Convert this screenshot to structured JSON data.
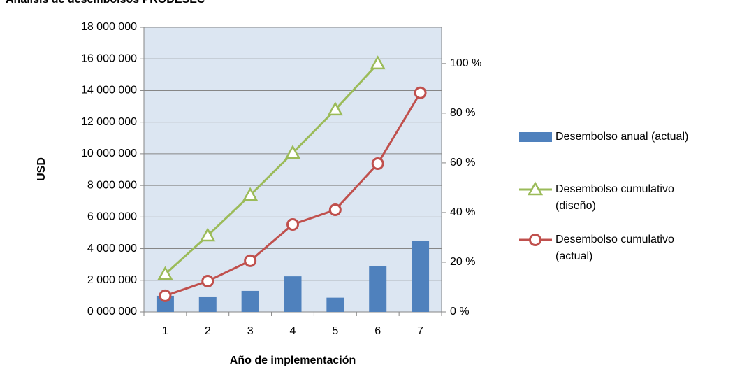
{
  "chart_data": {
    "type": "bar_line",
    "title": "Análisis de desembolsos PRODESEC",
    "x_label": "Año de implementación",
    "y_label": "USD",
    "categories": [
      "1",
      "2",
      "3",
      "4",
      "5",
      "6",
      "7"
    ],
    "series": [
      {
        "name": "Desembolso anual (actual)",
        "type": "bar",
        "color": "#4f81bd",
        "values": [
          1020000,
          930000,
          1330000,
          2250000,
          900000,
          2880000,
          4470000
        ]
      },
      {
        "name": "Desembolso cumulativo (diseño)",
        "type": "line",
        "axis": "y2",
        "color": "#9bbb59",
        "marker": "triangle",
        "values": [
          15.2,
          30.7,
          47,
          64,
          81.4,
          100,
          null
        ]
      },
      {
        "name": "Desembolso cumulativo (actual)",
        "type": "line",
        "axis": "y2",
        "color": "#c0504d",
        "marker": "circle",
        "values": [
          6.5,
          12.4,
          20.6,
          35.2,
          41.1,
          59.7,
          88.2
        ]
      }
    ],
    "ylim": [
      0,
      18000000
    ],
    "yticks": [
      {
        "value": 0,
        "label": "0 000 000"
      },
      {
        "value": 2000000,
        "label": "2 000 000"
      },
      {
        "value": 4000000,
        "label": "4 000 000"
      },
      {
        "value": 6000000,
        "label": "6 000 000"
      },
      {
        "value": 8000000,
        "label": "8 000 000"
      },
      {
        "value": 10000000,
        "label": "10 000 000"
      },
      {
        "value": 12000000,
        "label": "12 000 000"
      },
      {
        "value": 14000000,
        "label": "14 000 000"
      },
      {
        "value": 16000000,
        "label": "16 000 000"
      },
      {
        "value": 18000000,
        "label": "18 000 000"
      }
    ],
    "y2lim": [
      0,
      114.6
    ],
    "y2ticks": [
      {
        "value": 0,
        "label": "0 %"
      },
      {
        "value": 20,
        "label": "20 %"
      },
      {
        "value": 40,
        "label": "40 %"
      },
      {
        "value": 60,
        "label": "60 %"
      },
      {
        "value": 80,
        "label": "80 %"
      },
      {
        "value": 100,
        "label": "100 %"
      }
    ],
    "grid": true,
    "legend": "right"
  }
}
